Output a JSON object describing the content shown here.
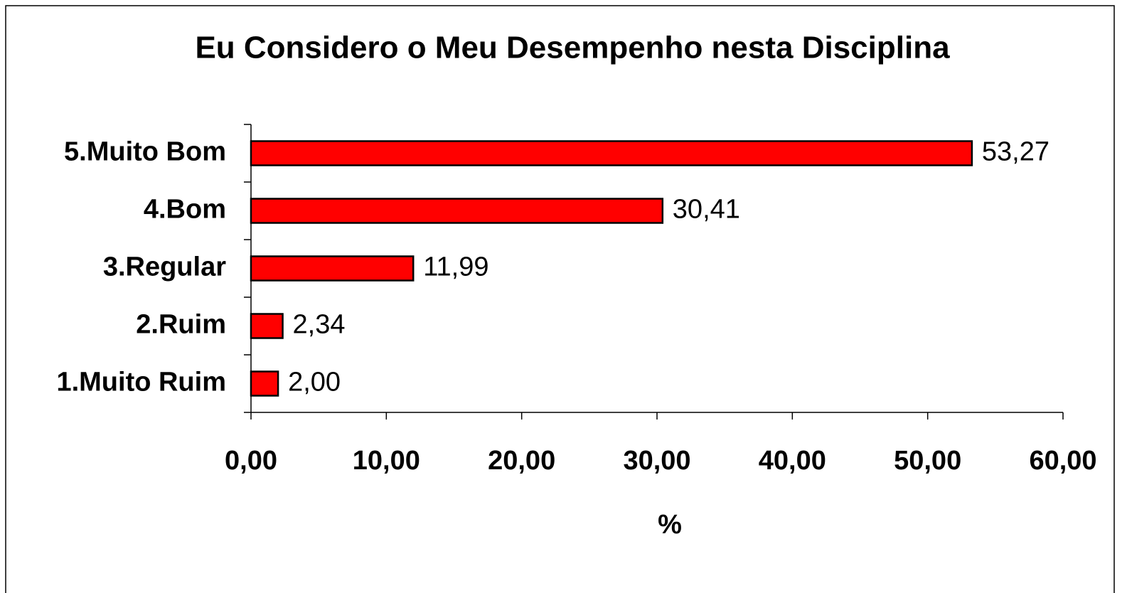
{
  "chart_data": {
    "type": "bar",
    "orientation": "horizontal",
    "title": "Eu Considero o Meu Desempenho nesta Disciplina",
    "x_label": "%",
    "categories": [
      "5.Muito Bom",
      "4.Bom",
      "3.Regular",
      "2.Ruim",
      "1.Muito Ruim"
    ],
    "values": [
      53.27,
      30.41,
      11.99,
      2.34,
      2.0
    ],
    "value_labels": [
      "53,27",
      "30,41",
      "11,99",
      "2,34",
      "2,00"
    ],
    "color": "#ff0000",
    "xlim": [
      0,
      60
    ],
    "xticks": [
      {
        "value": 0,
        "label": "0,00"
      },
      {
        "value": 10,
        "label": "10,00"
      },
      {
        "value": 20,
        "label": "20,00"
      },
      {
        "value": 30,
        "label": "30,00"
      },
      {
        "value": 40,
        "label": "40,00"
      },
      {
        "value": 50,
        "label": "50,00"
      },
      {
        "value": 60,
        "label": "60,00"
      }
    ],
    "grid": false
  }
}
